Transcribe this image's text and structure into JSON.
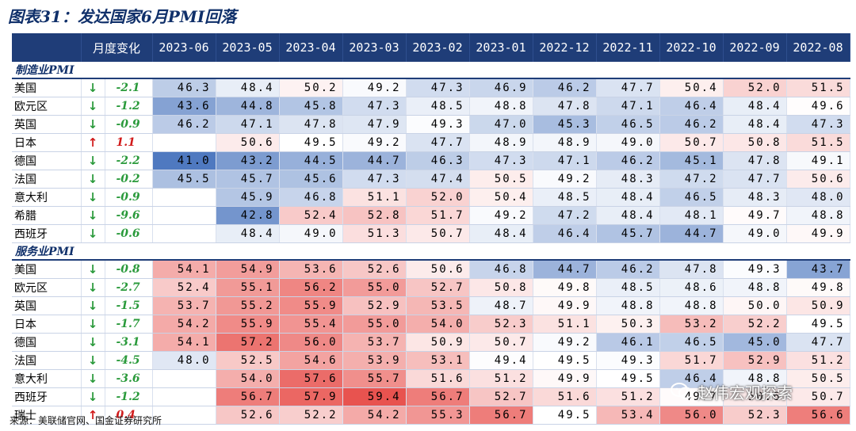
{
  "title": "图表31：发达国家6月PMI回落",
  "header": {
    "change_label": "月度变化",
    "months": [
      "2023-06",
      "2023-05",
      "2023-04",
      "2023-03",
      "2023-02",
      "2023-01",
      "2022-12",
      "2022-11",
      "2022-10",
      "2022-09",
      "2022-08"
    ]
  },
  "sections": [
    {
      "label": "制造业PMI",
      "rows": [
        {
          "name": "美国",
          "dir": "down",
          "arrow": "↓",
          "change": "-2.1",
          "values": [
            "46.3",
            "48.4",
            "50.2",
            "49.2",
            "47.3",
            "46.9",
            "46.2",
            "47.7",
            "50.4",
            "52.0",
            "51.5"
          ]
        },
        {
          "name": "欧元区",
          "dir": "down",
          "arrow": "↓",
          "change": "-1.2",
          "values": [
            "43.6",
            "44.8",
            "45.8",
            "47.3",
            "48.5",
            "48.8",
            "47.8",
            "47.1",
            "46.4",
            "48.4",
            "49.6"
          ]
        },
        {
          "name": "英国",
          "dir": "down",
          "arrow": "↓",
          "change": "-0.9",
          "values": [
            "46.2",
            "47.1",
            "47.8",
            "47.9",
            "49.3",
            "47.0",
            "45.3",
            "46.5",
            "46.2",
            "48.4",
            "47.3"
          ]
        },
        {
          "name": "日本",
          "dir": "up",
          "arrow": "↑",
          "change": "1.1",
          "values": [
            "",
            "50.6",
            "49.5",
            "49.2",
            "47.7",
            "48.9",
            "48.9",
            "49.0",
            "50.7",
            "50.8",
            "51.5"
          ]
        },
        {
          "name": "德国",
          "dir": "down",
          "arrow": "↓",
          "change": "-2.2",
          "values": [
            "41.0",
            "43.2",
            "44.5",
            "44.7",
            "46.3",
            "47.3",
            "47.1",
            "46.2",
            "45.1",
            "47.8",
            "49.1"
          ]
        },
        {
          "name": "法国",
          "dir": "down",
          "arrow": "↓",
          "change": "-0.2",
          "values": [
            "45.5",
            "45.7",
            "45.6",
            "47.3",
            "47.4",
            "50.5",
            "49.2",
            "48.3",
            "47.2",
            "47.7",
            "50.6"
          ]
        },
        {
          "name": "意大利",
          "dir": "down",
          "arrow": "↓",
          "change": "-0.9",
          "values": [
            "",
            "45.9",
            "46.8",
            "51.1",
            "52.0",
            "50.4",
            "48.5",
            "48.4",
            "46.5",
            "48.3",
            "48.0"
          ]
        },
        {
          "name": "希腊",
          "dir": "down",
          "arrow": "↓",
          "change": "-9.6",
          "values": [
            "",
            "42.8",
            "52.4",
            "52.8",
            "51.7",
            "49.2",
            "47.2",
            "48.4",
            "48.1",
            "49.7",
            "48.8"
          ]
        },
        {
          "name": "西班牙",
          "dir": "down",
          "arrow": "↓",
          "change": "-0.6",
          "values": [
            "",
            "48.4",
            "49.0",
            "51.3",
            "50.7",
            "48.4",
            "46.4",
            "45.7",
            "44.7",
            "49.0",
            "49.9"
          ]
        }
      ]
    },
    {
      "label": "服务业PMI",
      "rows": [
        {
          "name": "美国",
          "dir": "down",
          "arrow": "↓",
          "change": "-0.8",
          "values": [
            "54.1",
            "54.9",
            "53.6",
            "52.6",
            "50.6",
            "46.8",
            "44.7",
            "46.2",
            "47.8",
            "49.3",
            "43.7"
          ]
        },
        {
          "name": "欧元区",
          "dir": "down",
          "arrow": "↓",
          "change": "-2.7",
          "values": [
            "52.4",
            "55.1",
            "56.2",
            "55.0",
            "52.7",
            "50.8",
            "49.8",
            "48.5",
            "48.6",
            "48.8",
            "49.8"
          ]
        },
        {
          "name": "英国",
          "dir": "down",
          "arrow": "↓",
          "change": "-1.5",
          "values": [
            "53.7",
            "55.2",
            "55.9",
            "52.9",
            "53.5",
            "48.7",
            "49.9",
            "48.8",
            "48.8",
            "50.0",
            "50.9"
          ]
        },
        {
          "name": "日本",
          "dir": "down",
          "arrow": "↓",
          "change": "-1.7",
          "values": [
            "54.2",
            "55.9",
            "55.4",
            "55.0",
            "54.0",
            "52.3",
            "51.1",
            "50.3",
            "53.2",
            "52.2",
            "49.5"
          ]
        },
        {
          "name": "德国",
          "dir": "down",
          "arrow": "↓",
          "change": "-3.1",
          "values": [
            "54.1",
            "57.2",
            "56.0",
            "53.7",
            "50.9",
            "50.7",
            "49.2",
            "46.1",
            "46.5",
            "45.0",
            "47.7"
          ]
        },
        {
          "name": "法国",
          "dir": "down",
          "arrow": "↓",
          "change": "-4.5",
          "values": [
            "48.0",
            "52.5",
            "54.6",
            "53.9",
            "53.1",
            "49.4",
            "49.5",
            "49.3",
            "51.7",
            "52.9",
            "51.2"
          ]
        },
        {
          "name": "意大利",
          "dir": "down",
          "arrow": "↓",
          "change": "-3.6",
          "values": [
            "",
            "54.0",
            "57.6",
            "55.7",
            "51.6",
            "51.2",
            "49.9",
            "49.5",
            "46.4",
            "48.8",
            "50.5"
          ]
        },
        {
          "name": "西班牙",
          "dir": "down",
          "arrow": "↓",
          "change": "-1.2",
          "values": [
            "",
            "56.7",
            "57.9",
            "59.4",
            "56.7",
            "52.7",
            "51.6",
            "51.2",
            "49.7",
            "50.6",
            "50.7"
          ]
        },
        {
          "name": "瑞士",
          "dir": "up",
          "arrow": "↑",
          "change": "0.4",
          "values": [
            "",
            "52.6",
            "52.2",
            "54.2",
            "55.3",
            "56.7",
            "49.5",
            "53.4",
            "56.0",
            "52.3",
            "56.6"
          ]
        }
      ]
    }
  ],
  "source": "来源：美联储官网、国金证券研究所",
  "watermark": "赵伟宏观探索",
  "colors": {
    "header_bg": "#1f3d78",
    "up": "#d11b1b",
    "down": "#2a9a3b",
    "high": "#e8534f",
    "low": "#4f79c0"
  }
}
